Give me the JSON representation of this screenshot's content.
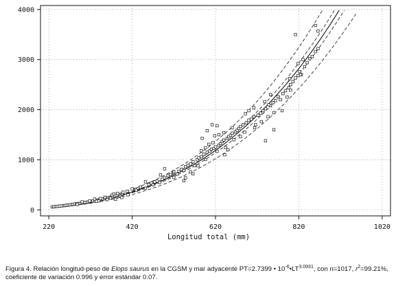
{
  "chart_data": {
    "type": "scatter",
    "xlabel": "Longitud total (mm)",
    "ylabel": "",
    "xlim": [
      200,
      1040
    ],
    "ylim": [
      -120,
      4080
    ],
    "x_ticks": [
      220,
      420,
      620,
      820,
      1020
    ],
    "y_ticks": [
      0,
      1000,
      2000,
      3000,
      4000
    ],
    "grid": "dotted",
    "model": {
      "equation": "PT = 2.7399e-6 * LT^3.0931",
      "a": 2.7399e-06,
      "b": 3.0931
    },
    "series": [
      {
        "style": "solid",
        "role": "fit"
      },
      {
        "style": "dashed",
        "role": "confidence-band"
      },
      {
        "style": "dashed",
        "role": "prediction-band"
      },
      {
        "style": "open-square",
        "role": "observations",
        "points": [
          [
            228,
            58
          ],
          [
            232,
            62
          ],
          [
            236,
            66
          ],
          [
            240,
            70
          ],
          [
            245,
            76
          ],
          [
            250,
            78
          ],
          [
            255,
            84
          ],
          [
            258,
            86
          ],
          [
            262,
            92
          ],
          [
            266,
            95
          ],
          [
            270,
            100
          ],
          [
            274,
            103
          ],
          [
            278,
            110
          ],
          [
            282,
            116
          ],
          [
            286,
            120
          ],
          [
            290,
            124
          ],
          [
            294,
            130
          ],
          [
            298,
            135
          ],
          [
            302,
            140
          ],
          [
            306,
            148
          ],
          [
            310,
            150
          ],
          [
            314,
            156
          ],
          [
            318,
            162
          ],
          [
            322,
            170
          ],
          [
            326,
            176
          ],
          [
            330,
            182
          ],
          [
            334,
            188
          ],
          [
            338,
            196
          ],
          [
            342,
            202
          ],
          [
            346,
            210
          ],
          [
            350,
            218
          ],
          [
            354,
            226
          ],
          [
            358,
            232
          ],
          [
            362,
            240
          ],
          [
            366,
            250
          ],
          [
            370,
            256
          ],
          [
            374,
            264
          ],
          [
            378,
            275
          ],
          [
            382,
            284
          ],
          [
            386,
            290
          ],
          [
            390,
            298
          ],
          [
            394,
            310
          ],
          [
            396,
            320
          ],
          [
            300,
            160
          ],
          [
            330,
            215
          ],
          [
            355,
            252
          ],
          [
            372,
            296
          ],
          [
            385,
            330
          ],
          [
            392,
            270
          ],
          [
            360,
            205
          ],
          [
            340,
            180
          ],
          [
            318,
            178
          ],
          [
            288,
            108
          ],
          [
            380,
            212
          ],
          [
            368,
            236
          ],
          [
            398,
            352
          ],
          [
            395,
            246
          ],
          [
            376,
            318
          ],
          [
            344,
            226
          ],
          [
            334,
            171
          ],
          [
            408,
            370
          ],
          [
            428,
            410
          ],
          [
            440,
            455
          ],
          [
            452,
            430
          ],
          [
            460,
            505
          ],
          [
            466,
            532
          ],
          [
            474,
            560
          ],
          [
            480,
            575
          ],
          [
            486,
            548
          ],
          [
            492,
            612
          ],
          [
            498,
            640
          ],
          [
            506,
            680
          ],
          [
            512,
            705
          ],
          [
            518,
            740
          ],
          [
            520,
            648
          ],
          [
            528,
            712
          ],
          [
            532,
            772
          ],
          [
            538,
            810
          ],
          [
            544,
            786
          ],
          [
            548,
            864
          ],
          [
            554,
            890
          ],
          [
            560,
            916
          ],
          [
            566,
            960
          ],
          [
            570,
            882
          ],
          [
            576,
            1000
          ],
          [
            580,
            1040
          ],
          [
            586,
            1060
          ],
          [
            592,
            1110
          ],
          [
            596,
            1005
          ],
          [
            600,
            1152
          ],
          [
            606,
            1176
          ],
          [
            610,
            1210
          ],
          [
            616,
            1228
          ],
          [
            620,
            1258
          ],
          [
            624,
            1170
          ],
          [
            628,
            1292
          ],
          [
            632,
            1324
          ],
          [
            636,
            1364
          ],
          [
            640,
            1394
          ],
          [
            644,
            1246
          ],
          [
            648,
            1430
          ],
          [
            652,
            1460
          ],
          [
            656,
            1490
          ],
          [
            660,
            1530
          ],
          [
            664,
            1400
          ],
          [
            668,
            1560
          ],
          [
            672,
            1590
          ],
          [
            676,
            1626
          ],
          [
            680,
            1664
          ],
          [
            686,
            1700
          ],
          [
            690,
            1552
          ],
          [
            694,
            1740
          ],
          [
            700,
            1790
          ],
          [
            706,
            1810
          ],
          [
            712,
            1860
          ],
          [
            716,
            1700
          ],
          [
            722,
            1890
          ],
          [
            728,
            1930
          ],
          [
            734,
            1980
          ],
          [
            740,
            2020
          ],
          [
            746,
            1860
          ],
          [
            752,
            2080
          ],
          [
            758,
            2140
          ],
          [
            764,
            2180
          ],
          [
            770,
            2260
          ],
          [
            776,
            2200
          ],
          [
            782,
            2320
          ],
          [
            788,
            2380
          ],
          [
            792,
            2252
          ],
          [
            796,
            2440
          ],
          [
            800,
            2500
          ],
          [
            806,
            2560
          ],
          [
            812,
            2634
          ],
          [
            818,
            2680
          ],
          [
            822,
            2760
          ],
          [
            826,
            2700
          ],
          [
            834,
            2860
          ],
          [
            840,
            2940
          ],
          [
            846,
            3020
          ],
          [
            852,
            3060
          ],
          [
            860,
            3160
          ],
          [
            866,
            3220
          ],
          [
            600,
            1580
          ],
          [
            612,
            1700
          ],
          [
            624,
            1680
          ],
          [
            640,
            1540
          ],
          [
            660,
            1640
          ],
          [
            596,
            1240
          ],
          [
            614,
            1340
          ],
          [
            642,
            1100
          ],
          [
            650,
            1200
          ],
          [
            680,
            1460
          ],
          [
            692,
            1920
          ],
          [
            712,
            2040
          ],
          [
            730,
            1760
          ],
          [
            740,
            1380
          ],
          [
            760,
            1600
          ],
          [
            780,
            1980
          ],
          [
            800,
            2390
          ],
          [
            760,
            1940
          ],
          [
            818,
            2920
          ],
          [
            830,
            3000
          ],
          [
            752,
            2300
          ],
          [
            588,
            1430
          ],
          [
            618,
            1480
          ],
          [
            498,
            820
          ],
          [
            488,
            700
          ],
          [
            544,
            580
          ],
          [
            560,
            760
          ],
          [
            578,
            880
          ],
          [
            604,
            1310
          ],
          [
            628,
            1500
          ],
          [
            586,
            1180
          ],
          [
            700,
            1980
          ],
          [
            714,
            1640
          ],
          [
            738,
            2160
          ],
          [
            748,
            2100
          ],
          [
            798,
            2620
          ],
          [
            812,
            3500
          ],
          [
            860,
            3680
          ],
          [
            866,
            3570
          ],
          [
            824,
            2700
          ],
          [
            452,
            560
          ],
          [
            470,
            500
          ],
          [
            520,
            760
          ],
          [
            548,
            640
          ],
          [
            566,
            720
          ],
          [
            410,
            300
          ],
          [
            420,
            420
          ],
          [
            430,
            390
          ]
        ]
      }
    ]
  },
  "caption": {
    "prefix": "Figura 4. Relación longitud-peso de ",
    "species": "Elops saurus",
    "middle": " en la CGSM y mar adyacente PT=2.7399 • 10",
    "exp1": "-6",
    "mid2": "•LT",
    "exp2": "3.0931",
    "after": ", con n=1017, ",
    "r": "r",
    "r_exp": "2",
    "rest": "=99.21%, coeficiente de variación 0.996 y error estándar 0.07."
  }
}
